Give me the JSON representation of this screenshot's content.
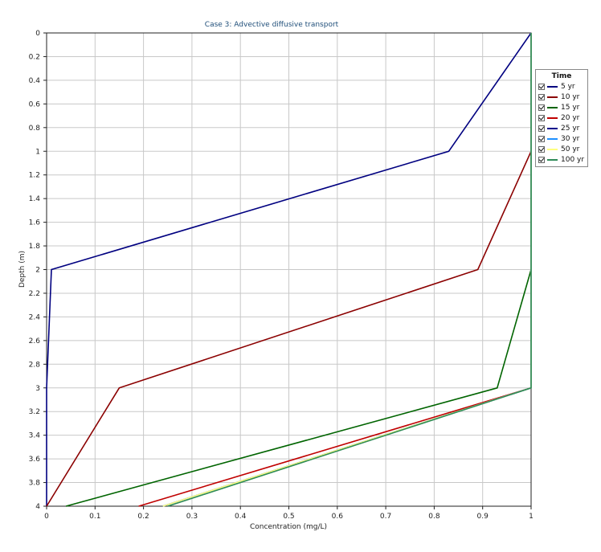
{
  "chart_data": {
    "type": "line",
    "title": "Case 3: Advective diffusive transport",
    "xlabel": "Concentration (mg/L)",
    "ylabel": "Depth (m)",
    "xlim": [
      0,
      1
    ],
    "ylim": [
      0,
      4
    ],
    "y_inverted": true,
    "grid": true,
    "legend_placement": "right",
    "legend_title": "Time",
    "x_ticks": [
      "0",
      "0.1",
      "0.2",
      "0.3",
      "0.4",
      "0.5",
      "0.6",
      "0.7",
      "0.8",
      "0.9",
      "1"
    ],
    "y_ticks": [
      "0",
      "0.2",
      "0.4",
      "0.6",
      "0.8",
      "1",
      "1.2",
      "1.4",
      "1.6",
      "1.8",
      "2",
      "2.2",
      "2.4",
      "2.6",
      "2.8",
      "3",
      "3.2",
      "3.4",
      "3.6",
      "3.8",
      "4"
    ],
    "series": [
      {
        "name": "5 yr",
        "color": "#000080",
        "points": [
          [
            1.0,
            0
          ],
          [
            0.83,
            1.0
          ],
          [
            0.01,
            2.0
          ],
          [
            0.0,
            3.0
          ],
          [
            0.0,
            4.0
          ]
        ]
      },
      {
        "name": "10 yr",
        "color": "#8b0000",
        "points": [
          [
            1.0,
            1.0
          ],
          [
            0.89,
            2.0
          ],
          [
            0.15,
            3.0
          ],
          [
            0.0,
            4.0
          ]
        ]
      },
      {
        "name": "15 yr",
        "color": "#006400",
        "points": [
          [
            1.0,
            0
          ],
          [
            1.0,
            2.0
          ],
          [
            0.93,
            3.0
          ],
          [
            0.04,
            4.0
          ]
        ]
      },
      {
        "name": "20 yr",
        "color": "#c00000",
        "points": [
          [
            1.0,
            0
          ],
          [
            1.0,
            3.0
          ],
          [
            0.19,
            4.0
          ]
        ]
      },
      {
        "name": "25 yr",
        "color": "#00008b",
        "points": [
          [
            1.0,
            0
          ],
          [
            1.0,
            3.0
          ],
          [
            0.24,
            4.0
          ]
        ]
      },
      {
        "name": "30 yr",
        "color": "#1e90ff",
        "points": [
          [
            1.0,
            0
          ],
          [
            1.0,
            3.0
          ],
          [
            0.24,
            4.0
          ]
        ]
      },
      {
        "name": "50 yr",
        "color": "#ffff80",
        "points": [
          [
            1.0,
            0
          ],
          [
            1.0,
            3.0
          ],
          [
            0.24,
            4.0
          ]
        ]
      },
      {
        "name": "100 yr",
        "color": "#2e8b57",
        "points": [
          [
            1.0,
            0
          ],
          [
            1.0,
            3.0
          ],
          [
            0.25,
            4.0
          ]
        ]
      }
    ]
  }
}
